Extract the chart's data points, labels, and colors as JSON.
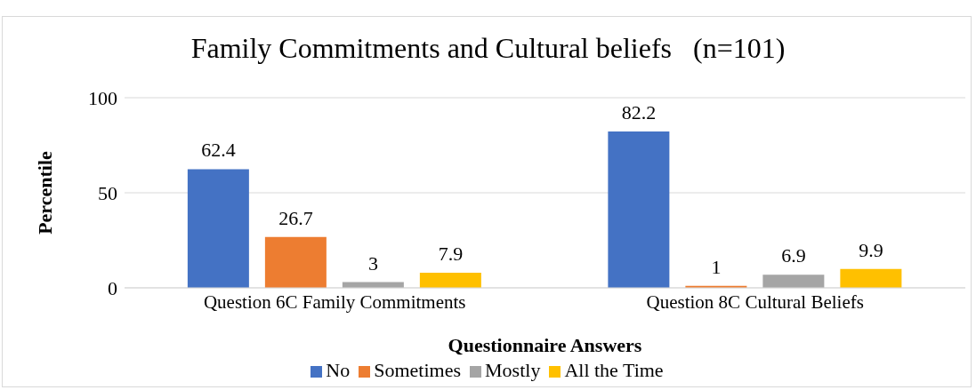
{
  "chart_data": {
    "type": "bar",
    "title": "Family Commitments and Cultural beliefs   (n=101)",
    "xlabel": "Questionnaire Answers",
    "ylabel": "Percentile",
    "categories": [
      "Question 6C Family Commitments",
      "Question 8C Cultural Beliefs"
    ],
    "series": [
      {
        "name": "No",
        "color": "#4472c4",
        "values": [
          62.4,
          82.2
        ]
      },
      {
        "name": "Sometimes",
        "color": "#ed7d31",
        "values": [
          26.7,
          1
        ]
      },
      {
        "name": "Mostly",
        "color": "#a5a5a5",
        "values": [
          3,
          6.9
        ]
      },
      {
        "name": "All the Time",
        "color": "#ffc000",
        "values": [
          7.9,
          9.9
        ]
      }
    ],
    "ylim": [
      0,
      100
    ],
    "yticks": [
      0,
      50,
      100
    ],
    "grid": "y",
    "legend": "bottom",
    "data_labels": true
  }
}
